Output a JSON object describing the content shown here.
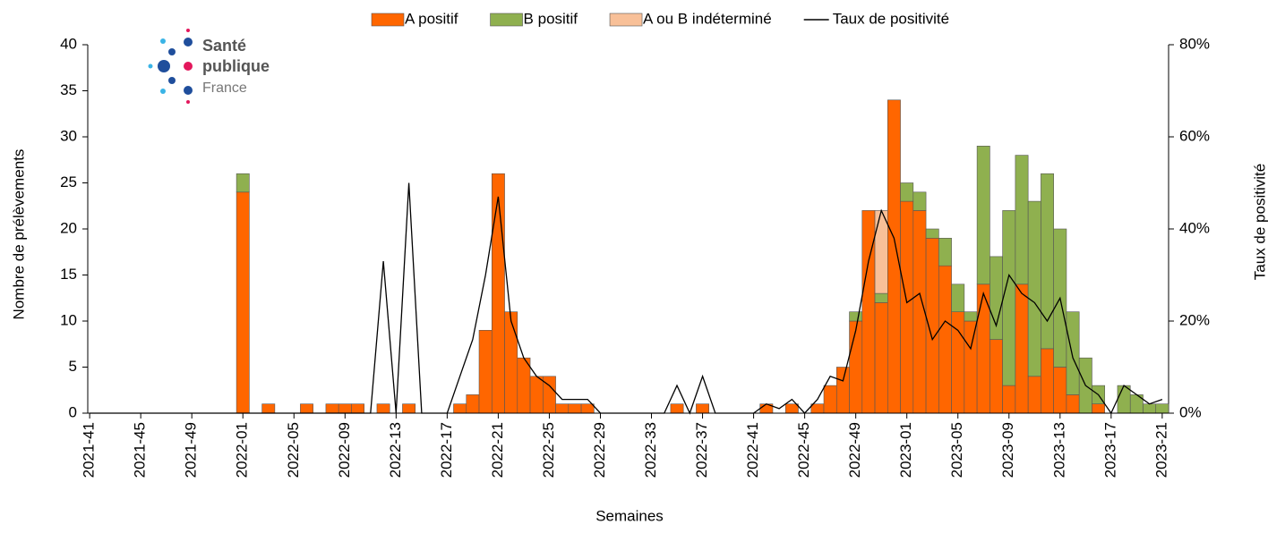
{
  "chart_data": {
    "type": "bar",
    "stacked": true,
    "logo": {
      "line1": "Santé",
      "line2": "publique",
      "line3": "France"
    },
    "x_label": "Semaines",
    "y_label": "Nombre de prélèvements",
    "y2_label": "Taux de positivité",
    "categories": [
      "2021-41",
      null,
      null,
      null,
      "2021-45",
      null,
      null,
      null,
      "2021-49",
      null,
      null,
      null,
      "2022-01",
      null,
      null,
      null,
      "2022-05",
      null,
      null,
      null,
      "2022-09",
      null,
      null,
      null,
      "2022-13",
      null,
      null,
      null,
      "2022-17",
      null,
      null,
      null,
      "2022-21",
      null,
      null,
      null,
      "2022-25",
      null,
      null,
      null,
      "2022-29",
      null,
      null,
      null,
      "2022-33",
      null,
      null,
      null,
      "2022-37",
      null,
      null,
      null,
      "2022-41",
      null,
      null,
      null,
      "2022-45",
      null,
      null,
      null,
      "2022-49",
      null,
      null,
      null,
      "2023-01",
      null,
      null,
      null,
      "2023-05",
      null,
      null,
      null,
      "2023-09",
      null,
      null,
      null,
      "2023-13",
      null,
      null,
      null,
      "2023-17",
      null,
      null,
      null,
      "2023-21"
    ],
    "series": [
      {
        "name": "A positif",
        "color": "#ff6600",
        "values": [
          0,
          0,
          0,
          0,
          0,
          0,
          0,
          0,
          0,
          0,
          0,
          0,
          24,
          0,
          1,
          0,
          0,
          1,
          0,
          1,
          1,
          1,
          0,
          1,
          0,
          1,
          0,
          0,
          0,
          1,
          2,
          9,
          26,
          11,
          6,
          4,
          4,
          1,
          1,
          1,
          0,
          0,
          0,
          0,
          0,
          0,
          1,
          0,
          1,
          0,
          0,
          0,
          0,
          1,
          0,
          1,
          0,
          1,
          3,
          5,
          10,
          22,
          12,
          34,
          23,
          22,
          19,
          16,
          11,
          10,
          14,
          8,
          3,
          14,
          4,
          7,
          5,
          2,
          0,
          1,
          0,
          0,
          0,
          0,
          0
        ]
      },
      {
        "name": "B positif",
        "color": "#8fb04f",
        "values": [
          0,
          0,
          0,
          0,
          0,
          0,
          0,
          0,
          0,
          0,
          0,
          0,
          2,
          0,
          0,
          0,
          0,
          0,
          0,
          0,
          0,
          0,
          0,
          0,
          0,
          0,
          0,
          0,
          0,
          0,
          0,
          0,
          0,
          0,
          0,
          0,
          0,
          0,
          0,
          0,
          0,
          0,
          0,
          0,
          0,
          0,
          0,
          0,
          0,
          0,
          0,
          0,
          0,
          0,
          0,
          0,
          0,
          0,
          0,
          0,
          1,
          0,
          1,
          0,
          2,
          2,
          1,
          3,
          3,
          1,
          15,
          9,
          19,
          14,
          19,
          19,
          15,
          9,
          6,
          2,
          0,
          3,
          2,
          1,
          1
        ]
      },
      {
        "name": "A ou B indéterminé",
        "color": "#f8c098",
        "values": [
          0,
          0,
          0,
          0,
          0,
          0,
          0,
          0,
          0,
          0,
          0,
          0,
          0,
          0,
          0,
          0,
          0,
          0,
          0,
          0,
          0,
          0,
          0,
          0,
          0,
          0,
          0,
          0,
          0,
          0,
          0,
          0,
          0,
          0,
          0,
          0,
          0,
          0,
          0,
          0,
          0,
          0,
          0,
          0,
          0,
          0,
          0,
          0,
          0,
          0,
          0,
          0,
          0,
          0,
          0,
          0,
          0,
          0,
          0,
          0,
          0,
          0,
          9,
          0,
          0,
          0,
          0,
          0,
          0,
          0,
          0,
          0,
          0,
          0,
          0,
          0,
          0,
          0,
          0,
          0,
          0,
          0,
          0,
          0,
          0
        ]
      },
      {
        "name": "Taux de positivité",
        "color": "#000000",
        "type": "line",
        "axis": "y2",
        "values": [
          0,
          0,
          0,
          0,
          0,
          0,
          0,
          0,
          0,
          0,
          0,
          0,
          0,
          0,
          0,
          0,
          0,
          0,
          0,
          0,
          0,
          0,
          0,
          33,
          0,
          50,
          0,
          0,
          0,
          8,
          16,
          30,
          47,
          20,
          12,
          8,
          6,
          3,
          3,
          3,
          0,
          0,
          0,
          0,
          0,
          0,
          6,
          0,
          8,
          0,
          0,
          0,
          0,
          2,
          1,
          3,
          0,
          3,
          8,
          7,
          18,
          33,
          44,
          38,
          24,
          26,
          16,
          20,
          18,
          14,
          26,
          19,
          30,
          26,
          24,
          20,
          25,
          12,
          6,
          4,
          0,
          6,
          4,
          2,
          3
        ]
      }
    ],
    "ylim": [
      0,
      40
    ],
    "yticks": [
      0,
      5,
      10,
      15,
      20,
      25,
      30,
      35,
      40
    ],
    "y2lim": [
      0,
      80
    ],
    "y2ticks": [
      {
        "value": 0,
        "label": "0%"
      },
      {
        "value": 20,
        "label": "20%"
      },
      {
        "value": 40,
        "label": "40%"
      },
      {
        "value": 60,
        "label": "60%"
      },
      {
        "value": 80,
        "label": "80%"
      }
    ]
  }
}
